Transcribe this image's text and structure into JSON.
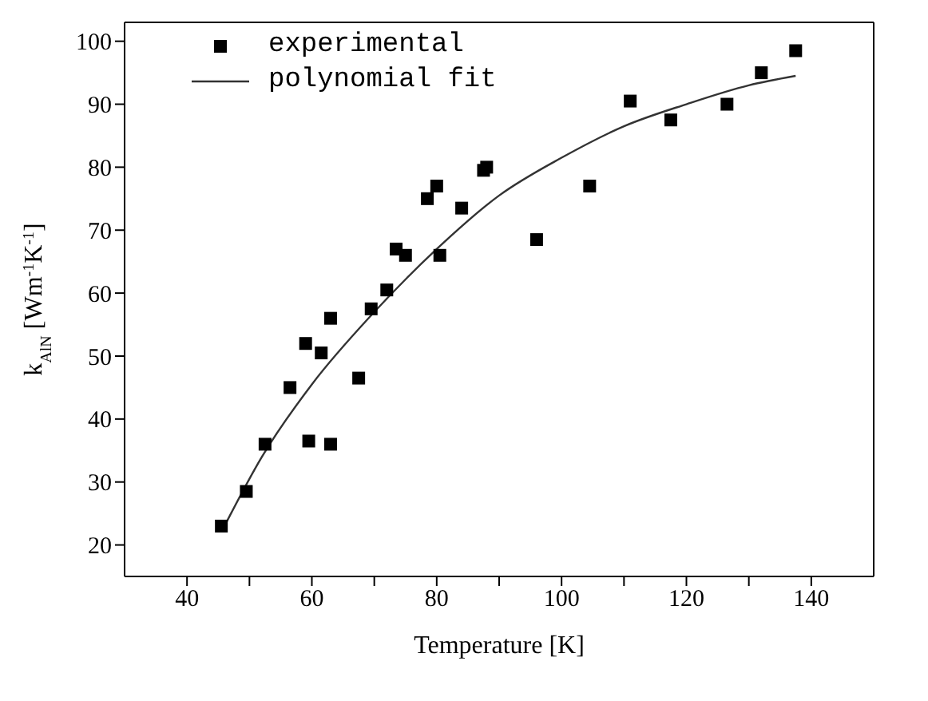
{
  "chart_data": {
    "type": "scatter",
    "xlabel": "Temperature [K]",
    "ylabel": "k$_{AlN}$ [Wm$^{-1}$K$^{-1}$]",
    "xlim": [
      30,
      150
    ],
    "xticks": [
      40,
      {
        "value": 50,
        "label": null
      },
      60,
      {
        "value": 70,
        "label": null
      },
      80,
      {
        "value": 90,
        "label": null
      },
      100,
      {
        "value": 110,
        "label": null
      },
      120,
      {
        "value": 130,
        "label": null
      },
      140
    ],
    "ylim": [
      15,
      103
    ],
    "yticks": [
      20,
      30,
      40,
      50,
      60,
      70,
      80,
      90,
      100
    ],
    "grid": false,
    "legend": "top left",
    "series": [
      {
        "name": "experimental",
        "marker": "square",
        "color": "#000000",
        "x": [
          45.5,
          49.5,
          52.5,
          56.5,
          59,
          59.5,
          61.5,
          63,
          63,
          67.5,
          69.5,
          72,
          73.5,
          75,
          78.5,
          80,
          80.5,
          84,
          87.5,
          88,
          96,
          104.5,
          111,
          117.5,
          126.5,
          132,
          137.5
        ],
        "values": [
          23,
          28.5,
          36,
          45,
          52,
          36.5,
          50.5,
          56,
          36,
          46.5,
          57.5,
          60.5,
          67,
          66,
          75,
          77,
          66,
          73.5,
          79.5,
          80,
          68.5,
          77,
          90.5,
          87.5,
          90,
          95,
          98.5
        ]
      },
      {
        "name": "polynomial fit",
        "type": "line",
        "marker": "none",
        "line_style": "solid",
        "color": "#333333",
        "x": [
          46,
          52,
          60,
          70,
          80,
          90,
          100,
          110,
          120,
          130,
          137.5
        ],
        "values": [
          23,
          34,
          45.5,
          57,
          67,
          75.5,
          81.5,
          86.5,
          90,
          93,
          94.5
        ]
      }
    ]
  }
}
